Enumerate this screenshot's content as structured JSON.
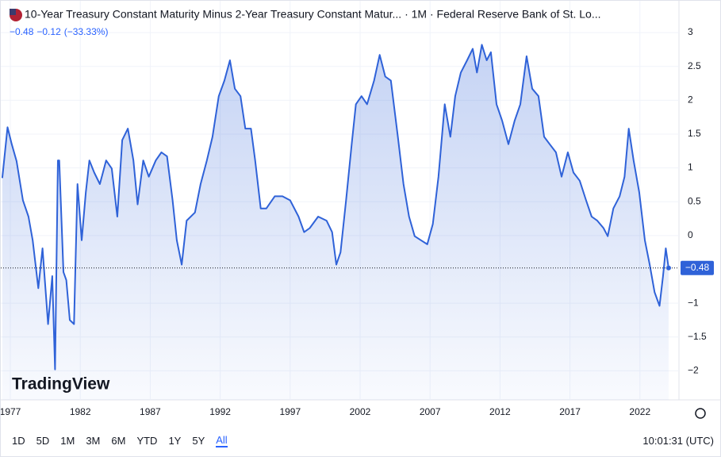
{
  "chart_data": {
    "type": "area",
    "title": "10-Year Treasury Constant Maturity Minus 2-Year Treasury Constant Matur... · 1M · Federal Reserve Bank of St. Lo...",
    "last": "−0.48",
    "change": "−0.12",
    "change_pct": "(−33.33%)",
    "color": "#2f62d8",
    "x": [
      1976.43,
      1976.8,
      1977.1,
      1977.45,
      1977.9,
      1978.3,
      1978.6,
      1979.0,
      1979.3,
      1979.7,
      1980.0,
      1980.2,
      1980.4,
      1980.5,
      1980.8,
      1981.0,
      1981.25,
      1981.55,
      1981.8,
      1982.1,
      1982.4,
      1982.65,
      1983.0,
      1983.4,
      1983.85,
      1984.25,
      1984.65,
      1985.0,
      1985.4,
      1985.8,
      1986.1,
      1986.5,
      1986.9,
      1987.4,
      1987.8,
      1988.2,
      1988.6,
      1988.9,
      1989.25,
      1989.6,
      1990.2,
      1990.6,
      1991.05,
      1991.45,
      1991.9,
      1992.3,
      1992.7,
      1993.05,
      1993.45,
      1993.8,
      1994.2,
      1994.5,
      1994.9,
      1995.3,
      1995.9,
      1996.45,
      1997.0,
      1997.6,
      1998.0,
      1998.4,
      1999.0,
      1999.6,
      2000.0,
      2000.3,
      2000.6,
      2001.0,
      2001.4,
      2001.7,
      2002.1,
      2002.5,
      2003.0,
      2003.4,
      2003.8,
      2004.2,
      2004.7,
      2005.1,
      2005.5,
      2005.9,
      2006.35,
      2006.8,
      2007.2,
      2007.6,
      2008.05,
      2008.45,
      2008.8,
      2009.2,
      2009.65,
      2010.05,
      2010.35,
      2010.7,
      2011.05,
      2011.35,
      2011.75,
      2012.15,
      2012.6,
      2013.05,
      2013.45,
      2013.9,
      2014.3,
      2014.75,
      2015.15,
      2015.55,
      2016.0,
      2016.4,
      2016.85,
      2017.25,
      2017.7,
      2018.15,
      2018.55,
      2018.95,
      2019.4,
      2019.7,
      2020.1,
      2020.55,
      2020.9,
      2021.2,
      2021.55,
      2021.95,
      2022.35,
      2022.7,
      2023.05,
      2023.4,
      2023.65,
      2023.85,
      2024.05
    ],
    "values": [
      0.85,
      1.6,
      1.35,
      1.1,
      0.52,
      0.28,
      -0.07,
      -0.78,
      -0.19,
      -1.31,
      -0.6,
      -1.98,
      1.11,
      1.11,
      -0.54,
      -0.66,
      -1.25,
      -1.31,
      0.76,
      -0.07,
      0.64,
      1.11,
      0.93,
      0.76,
      1.11,
      0.99,
      0.28,
      1.41,
      1.58,
      1.11,
      0.46,
      1.11,
      0.87,
      1.11,
      1.23,
      1.17,
      0.52,
      -0.07,
      -0.43,
      0.22,
      0.34,
      0.76,
      1.11,
      1.46,
      2.06,
      2.29,
      2.59,
      2.17,
      2.06,
      1.58,
      1.58,
      1.11,
      0.4,
      0.4,
      0.58,
      0.58,
      0.52,
      0.28,
      0.05,
      0.11,
      0.28,
      0.22,
      0.05,
      -0.43,
      -0.25,
      0.52,
      1.35,
      1.94,
      2.06,
      1.94,
      2.29,
      2.67,
      2.35,
      2.29,
      1.46,
      0.76,
      0.28,
      -0.01,
      -0.07,
      -0.13,
      0.17,
      0.87,
      1.94,
      1.46,
      2.06,
      2.41,
      2.59,
      2.76,
      2.41,
      2.82,
      2.59,
      2.71,
      1.94,
      1.7,
      1.35,
      1.7,
      1.94,
      2.65,
      2.17,
      2.06,
      1.46,
      1.35,
      1.23,
      0.87,
      1.23,
      0.93,
      0.81,
      0.52,
      0.28,
      0.22,
      0.11,
      -0.01,
      0.4,
      0.58,
      0.87,
      1.58,
      1.11,
      0.64,
      -0.07,
      -0.43,
      -0.84,
      -1.04,
      -0.6,
      -0.19,
      -0.48
    ],
    "xlim": [
      1976.32,
      2024.79
    ],
    "ylim": [
      -2.43,
      3.47
    ],
    "xticks": [
      1977,
      1982,
      1987,
      1992,
      1997,
      2002,
      2007,
      2012,
      2017,
      2022
    ],
    "yticks": [
      3,
      2.5,
      2,
      1.5,
      1,
      0.5,
      0,
      {
        "value": -1,
        "label": "−1"
      },
      {
        "value": -1.5,
        "label": "−1.5"
      },
      {
        "value": -2,
        "label": "−2"
      }
    ],
    "grid": true
  },
  "logo": "TradingView",
  "toolbar": {
    "ranges": [
      "1D",
      "5D",
      "1M",
      "3M",
      "6M",
      "YTD",
      "1Y",
      "5Y",
      "All"
    ],
    "active": 8,
    "time": "10:01:31 (UTC)"
  }
}
